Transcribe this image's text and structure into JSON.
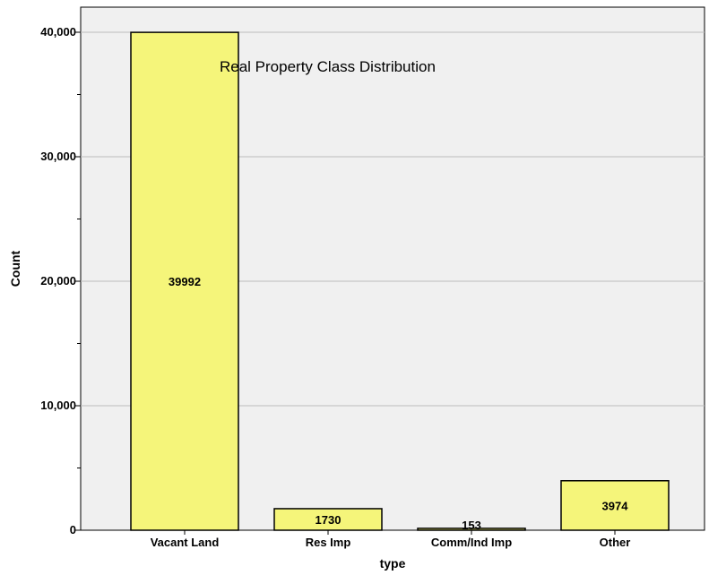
{
  "chart_data": {
    "type": "bar",
    "title": "Real Property Class Distribution",
    "xlabel": "type",
    "ylabel": "Count",
    "categories": [
      "Vacant Land",
      "Res Imp",
      "Comm/Ind Imp",
      "Other"
    ],
    "values": [
      39992,
      1730,
      153,
      3974
    ],
    "data_labels": [
      "39992",
      "1730",
      "153",
      "3974"
    ],
    "ylim": [
      0,
      42000
    ],
    "yticks": [
      0,
      10000,
      20000,
      30000,
      40000
    ],
    "ytick_labels": [
      "0",
      "10,000",
      "20,000",
      "30,000",
      "40,000"
    ],
    "grid": true,
    "bar_color": "#F5F57A",
    "plot_background": "#F0F0F0"
  }
}
